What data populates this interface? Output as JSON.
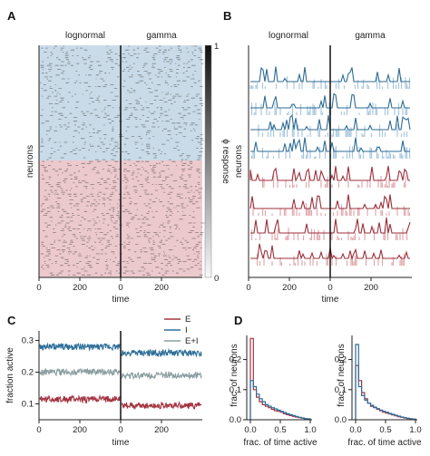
{
  "panels": {
    "A": {
      "letter": "A",
      "group_labels": [
        "lognormal",
        "gamma"
      ],
      "ylabel": "neurons",
      "xlabel": "time",
      "xticks": [
        "0",
        "200",
        "0",
        "200"
      ],
      "colorbar": {
        "label": "ϕ response",
        "top": "1",
        "bottom": "0"
      },
      "colors": {
        "E_bg": "#c9dbe8",
        "I_bg": "#ecc9cd"
      }
    },
    "B": {
      "letter": "B",
      "group_labels": [
        "lognormal",
        "gamma"
      ],
      "ylabel": "neurons",
      "xlabel": "time",
      "xticks": [
        "0",
        "200",
        "0",
        "200"
      ],
      "colors": {
        "E_dark": "#2e6b94",
        "E_light": "#a9c7de",
        "I_dark": "#9c2f3a",
        "I_light": "#e2a9ae"
      }
    },
    "C": {
      "letter": "C",
      "ylabel": "fraction active",
      "xlabel": "time",
      "xticks": [
        "0",
        "200",
        "0",
        "200"
      ],
      "yticks": [
        "0.1",
        "0.2",
        "0.3"
      ],
      "legend": [
        {
          "name": "E",
          "color": "#a33340"
        },
        {
          "name": "I",
          "color": "#2f6f9a"
        },
        {
          "name": "E+I",
          "color": "#8a9ea0"
        }
      ]
    },
    "D": {
      "letter": "D",
      "ylabel": "frac. of neurons",
      "xlabel": "frac. of time active",
      "xticks": [
        "0.0",
        "0.5",
        "1.0"
      ],
      "yticks": [
        "0.0",
        "0.1",
        "0.2"
      ]
    }
  },
  "chart_data": [
    {
      "type": "heatmap",
      "panel": "A",
      "series": [
        {
          "name": "lognormal",
          "x_range": [
            0,
            400
          ]
        },
        {
          "name": "gamma",
          "x_range": [
            0,
            400
          ]
        }
      ],
      "colorbar_range": [
        0,
        1
      ]
    },
    {
      "type": "line",
      "panel": "C",
      "x_range": [
        0,
        400
      ],
      "ylim": [
        0.05,
        0.33
      ],
      "series": [
        {
          "name": "I",
          "segments": [
            {
              "x": [
                0,
                400
              ],
              "y": [
                0.28,
                0.28
              ]
            },
            {
              "x": [
                0,
                400
              ],
              "y": [
                0.26,
                0.26
              ]
            }
          ]
        },
        {
          "name": "E+I",
          "segments": [
            {
              "x": [
                0,
                400
              ],
              "y": [
                0.2,
                0.2
              ]
            },
            {
              "x": [
                0,
                400
              ],
              "y": [
                0.19,
                0.19
              ]
            }
          ]
        },
        {
          "name": "E",
          "segments": [
            {
              "x": [
                0,
                400
              ],
              "y": [
                0.115,
                0.115
              ]
            },
            {
              "x": [
                0,
                400
              ],
              "y": [
                0.095,
                0.095
              ]
            }
          ]
        }
      ]
    },
    {
      "type": "bar",
      "panel": "D",
      "subplots": [
        {
          "categories": [
            0.025,
            0.075,
            0.125,
            0.175,
            0.225,
            0.275,
            0.325,
            0.375,
            0.425,
            0.475,
            0.525,
            0.575,
            0.625,
            0.675,
            0.725,
            0.775,
            0.825,
            0.875,
            0.925,
            0.975
          ],
          "series": [
            {
              "name": "E",
              "values": [
                0.27,
                0.1,
                0.075,
                0.06,
                0.05,
                0.045,
                0.04,
                0.035,
                0.03,
                0.028,
                0.025,
                0.02,
                0.017,
                0.014,
                0.011,
                0.009,
                0.007,
                0.005,
                0.003,
                0.002
              ]
            },
            {
              "name": "I",
              "values": [
                0.13,
                0.11,
                0.085,
                0.07,
                0.06,
                0.05,
                0.045,
                0.04,
                0.036,
                0.032,
                0.028,
                0.024,
                0.02,
                0.017,
                0.014,
                0.011,
                0.008,
                0.006,
                0.004,
                0.003
              ]
            }
          ]
        },
        {
          "categories": [
            0.025,
            0.075,
            0.125,
            0.175,
            0.225,
            0.275,
            0.325,
            0.375,
            0.425,
            0.475,
            0.525,
            0.575,
            0.625,
            0.675,
            0.725,
            0.775,
            0.825,
            0.875,
            0.925,
            0.975
          ],
          "series": [
            {
              "name": "E",
              "values": [
                0.18,
                0.13,
                0.09,
                0.07,
                0.055,
                0.045,
                0.04,
                0.035,
                0.03,
                0.025,
                0.022,
                0.019,
                0.016,
                0.013,
                0.01,
                0.008,
                0.006,
                0.004,
                0.003,
                0.002
              ]
            },
            {
              "name": "I",
              "values": [
                0.25,
                0.11,
                0.08,
                0.065,
                0.055,
                0.048,
                0.042,
                0.037,
                0.032,
                0.028,
                0.025,
                0.021,
                0.018,
                0.015,
                0.012,
                0.009,
                0.007,
                0.005,
                0.003,
                0.002
              ]
            }
          ]
        }
      ],
      "xlim": [
        0,
        1
      ],
      "ylim": [
        0,
        0.28
      ]
    }
  ]
}
